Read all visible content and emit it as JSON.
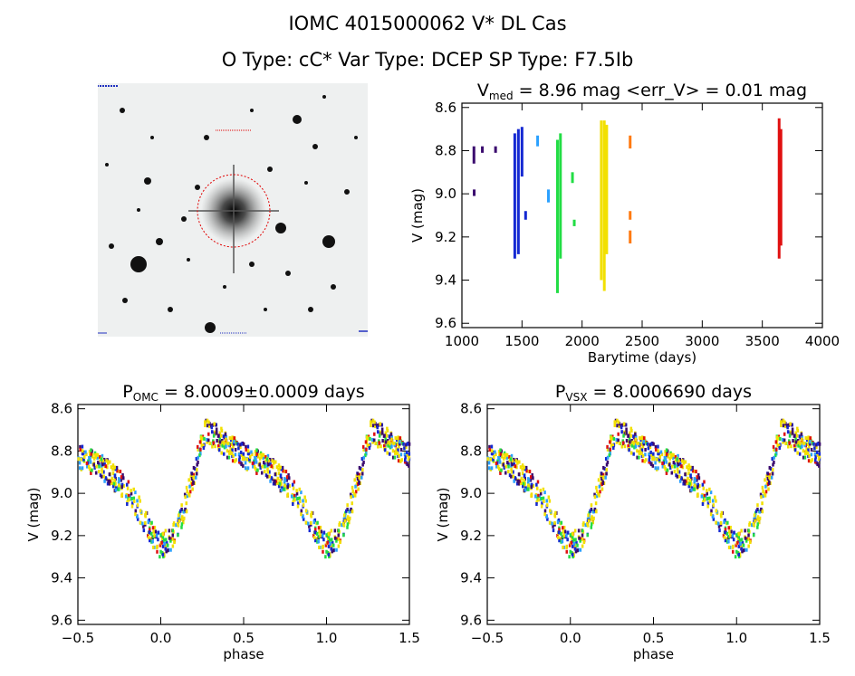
{
  "header": {
    "line1": "IOMC 4015000062   V* DL Cas",
    "line2": "O Type: cC*  Var Type: DCEP  SP Type: F7.5Ib"
  },
  "colors": {
    "series": [
      "#3a0a6e",
      "#1428d2",
      "#2aa0ff",
      "#22dd44",
      "#f2e000",
      "#ff7a10",
      "#e01010",
      "#00e5c8"
    ]
  },
  "chart_data": [
    {
      "type": "scatter",
      "title_parts": {
        "main": "V",
        "sub": "med",
        "rest": " = 8.96 mag <err_V> = 0.01 mag"
      },
      "xlabel": "Barytime (days)",
      "ylabel": "V (mag)",
      "xlim": [
        1000,
        4000
      ],
      "ylim": [
        9.62,
        8.58
      ],
      "xticks": [
        1000,
        1500,
        2000,
        2500,
        3000,
        3500,
        4000
      ],
      "yticks": [
        8.6,
        8.8,
        9.0,
        9.2,
        9.4,
        9.6
      ],
      "segments": [
        {
          "x": 1100,
          "y": [
            8.78,
            8.86
          ],
          "c": 0
        },
        {
          "x": 1102,
          "y": [
            8.98,
            9.01
          ],
          "c": 0
        },
        {
          "x": 1170,
          "y": [
            8.78,
            8.81
          ],
          "c": 0
        },
        {
          "x": 1280,
          "y": [
            8.78,
            8.81
          ],
          "c": 0
        },
        {
          "x": 1440,
          "y": [
            8.72,
            9.3
          ],
          "c": 1
        },
        {
          "x": 1470,
          "y": [
            8.7,
            9.28
          ],
          "c": 1
        },
        {
          "x": 1500,
          "y": [
            8.69,
            8.92
          ],
          "c": 1
        },
        {
          "x": 1530,
          "y": [
            9.08,
            9.12
          ],
          "c": 1
        },
        {
          "x": 1630,
          "y": [
            8.73,
            8.78
          ],
          "c": 2
        },
        {
          "x": 1720,
          "y": [
            8.98,
            9.04
          ],
          "c": 2
        },
        {
          "x": 1795,
          "y": [
            8.75,
            9.46
          ],
          "c": 3
        },
        {
          "x": 1820,
          "y": [
            8.72,
            9.3
          ],
          "c": 3
        },
        {
          "x": 1920,
          "y": [
            8.9,
            8.95
          ],
          "c": 3
        },
        {
          "x": 1935,
          "y": [
            9.12,
            9.15
          ],
          "c": 3
        },
        {
          "x": 2160,
          "y": [
            8.66,
            9.4
          ],
          "c": 4
        },
        {
          "x": 2185,
          "y": [
            8.66,
            9.45
          ],
          "c": 4
        },
        {
          "x": 2205,
          "y": [
            8.68,
            9.28
          ],
          "c": 4
        },
        {
          "x": 2400,
          "y": [
            8.73,
            8.79
          ],
          "c": 5
        },
        {
          "x": 2400,
          "y": [
            9.08,
            9.12
          ],
          "c": 5
        },
        {
          "x": 2400,
          "y": [
            9.17,
            9.23
          ],
          "c": 5
        },
        {
          "x": 3640,
          "y": [
            8.65,
            9.3
          ],
          "c": 6
        },
        {
          "x": 3655,
          "y": [
            8.7,
            9.24
          ],
          "c": 6
        }
      ]
    },
    {
      "type": "scatter",
      "title_parts": {
        "main": "P",
        "sub": "OMC",
        "rest": " = 8.0009±0.0009 days"
      },
      "xlabel": "phase",
      "ylabel": "V (mag)",
      "xlim": [
        -0.5,
        1.5
      ],
      "ylim": [
        9.62,
        8.58
      ],
      "xticks": [
        -0.5,
        0.0,
        0.5,
        1.0,
        1.5
      ],
      "xticklabels": [
        "−0.5",
        "0.0",
        "0.5",
        "1.0",
        "1.5"
      ],
      "yticks": [
        8.6,
        8.8,
        9.0,
        9.2,
        9.4,
        9.6
      ],
      "period": 8.0009,
      "curve": {
        "phase": [
          0.0,
          0.1,
          0.2,
          0.27,
          0.35,
          0.45,
          0.55,
          0.65,
          0.75,
          0.85,
          0.95,
          1.0
        ],
        "mag": [
          9.25,
          9.18,
          8.9,
          8.7,
          8.74,
          8.8,
          8.84,
          8.88,
          8.95,
          9.05,
          9.2,
          9.25
        ]
      },
      "scatter_mag": 0.06
    },
    {
      "type": "scatter",
      "title_parts": {
        "main": "P",
        "sub": "VSX",
        "rest": " = 8.0006690 days"
      },
      "xlabel": "phase",
      "ylabel": "V (mag)",
      "xlim": [
        -0.5,
        1.5
      ],
      "ylim": [
        9.62,
        8.58
      ],
      "xticks": [
        -0.5,
        0.0,
        0.5,
        1.0,
        1.5
      ],
      "xticklabels": [
        "−0.5",
        "0.0",
        "0.5",
        "1.0",
        "1.5"
      ],
      "yticks": [
        8.6,
        8.8,
        9.0,
        9.2,
        9.4,
        9.6
      ],
      "period": 8.000669,
      "curve": {
        "phase": [
          0.0,
          0.1,
          0.2,
          0.27,
          0.35,
          0.45,
          0.55,
          0.65,
          0.75,
          0.85,
          0.95,
          1.0
        ],
        "mag": [
          9.25,
          9.18,
          8.9,
          8.7,
          8.74,
          8.8,
          8.84,
          8.88,
          8.95,
          9.05,
          9.2,
          9.25
        ]
      },
      "scatter_mag": 0.06
    }
  ]
}
